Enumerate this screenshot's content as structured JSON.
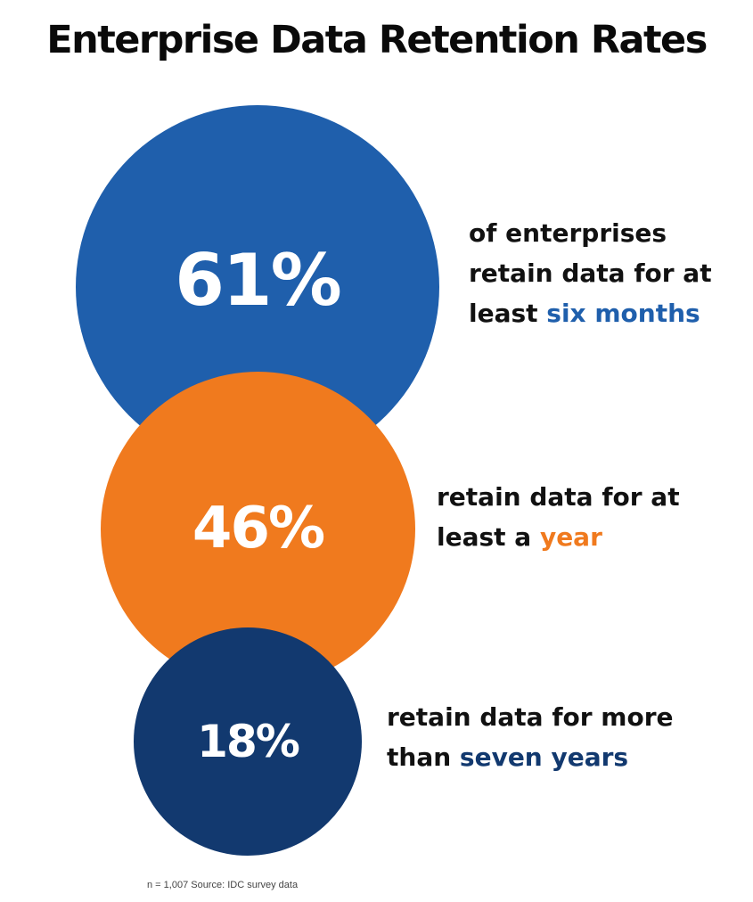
{
  "title": "Enterprise Data Retention Rates",
  "colors": {
    "six_months": "#1f5fac",
    "year": "#f07a1e",
    "seven_years": "#12396f"
  },
  "chart_data": {
    "type": "bubble",
    "title": "Enterprise Data Retention Rates",
    "series": [
      {
        "value": 61,
        "label": "61%",
        "color": "#1f5fac"
      },
      {
        "value": 46,
        "label": "46%",
        "color": "#f07a1e"
      },
      {
        "value": 18,
        "label": "18%",
        "color": "#12396f"
      }
    ]
  },
  "items": [
    {
      "value_label": "61%",
      "line1": "of enterprises",
      "line2": "retain data for at",
      "line3_prefix": "least ",
      "highlight": "six months"
    },
    {
      "value_label": "46%",
      "line1": "retain data for at",
      "line2_prefix": "least a ",
      "highlight": "year"
    },
    {
      "value_label": "18%",
      "line1": "retain data for more",
      "line2_prefix": "than ",
      "highlight": "seven years"
    }
  ],
  "source": "n = 1,007 Source: IDC survey data"
}
